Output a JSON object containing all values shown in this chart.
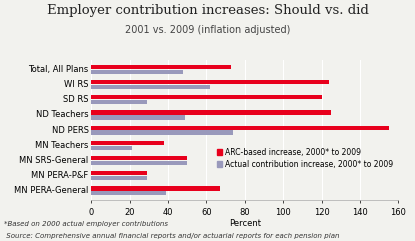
{
  "title": "Employer contribution increases: Should vs. did",
  "subtitle": "2001 vs. 2009 (inflation adjusted)",
  "xlabel": "Percent",
  "footnote1": "*Based on 2000 actual employer contributions",
  "footnote2": " Source: Comprehensive annual financial reports and/or actuarial reports for each pension plan",
  "categories": [
    "Total, All Plans",
    "WI RS",
    "SD RS",
    "ND Teachers",
    "ND PERS",
    "MN Teachers",
    "MN SRS-General",
    "MN PERA-P&F",
    "MN PERA-General"
  ],
  "arc_values": [
    73,
    124,
    120,
    125,
    155,
    38,
    50,
    29,
    67
  ],
  "actual_values": [
    48,
    62,
    29,
    49,
    74,
    21,
    50,
    29,
    39
  ],
  "arc_color": "#e8001c",
  "actual_color": "#9999bb",
  "legend_arc": "ARC-based increase, 2000* to 2009",
  "legend_actual": "Actual contribution increase, 2000* to 2009",
  "xlim": [
    0,
    160
  ],
  "xticks": [
    0,
    20,
    40,
    60,
    80,
    100,
    120,
    140,
    160
  ],
  "bg_color": "#f2f2ee",
  "title_fontsize": 9.5,
  "subtitle_fontsize": 7,
  "axis_fontsize": 6,
  "label_fontsize": 6,
  "legend_fontsize": 5.5,
  "footnote_fontsize": 5
}
